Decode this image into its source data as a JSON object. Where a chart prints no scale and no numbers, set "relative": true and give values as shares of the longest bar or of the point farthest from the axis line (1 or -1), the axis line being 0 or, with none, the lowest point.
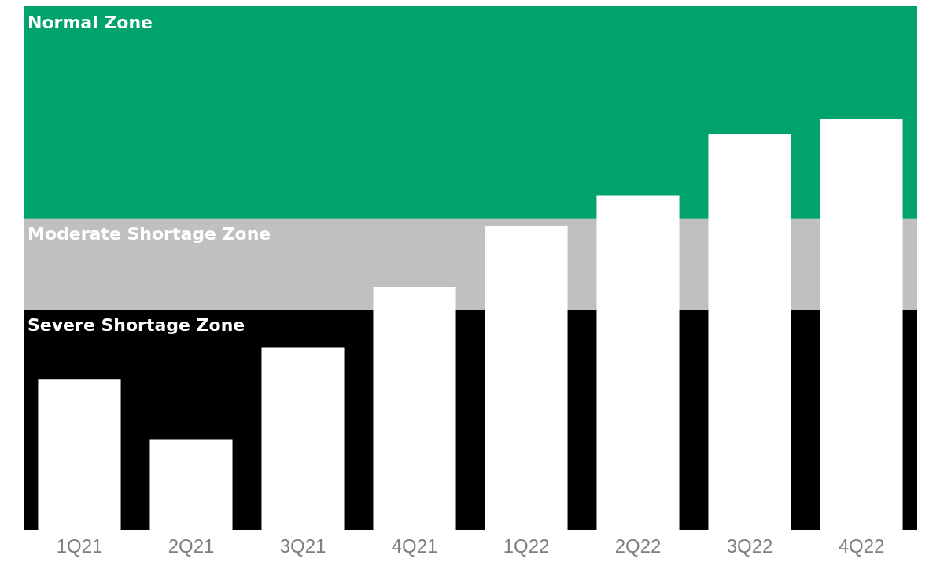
{
  "chart_data": {
    "type": "bar",
    "relative": true,
    "categories": [
      "1Q21",
      "2Q21",
      "3Q21",
      "4Q21",
      "1Q22",
      "2Q22",
      "3Q22",
      "4Q22"
    ],
    "values": [
      0.367,
      0.219,
      0.443,
      0.591,
      0.739,
      0.814,
      0.962,
      1
    ],
    "color": "#ffffff",
    "bands": [
      {
        "axis": "y",
        "from": 0,
        "to": 0.536,
        "label": "Severe Shortage Zone",
        "color": "#000000"
      },
      {
        "axis": "y",
        "from": 0.536,
        "to": 0.758,
        "label": "Moderate Shortage Zone",
        "color": "#c0c0c0"
      },
      {
        "axis": "y",
        "from": 0.758,
        "to": 1.274,
        "label": "Normal Zone",
        "color": "#00a36c"
      }
    ]
  }
}
